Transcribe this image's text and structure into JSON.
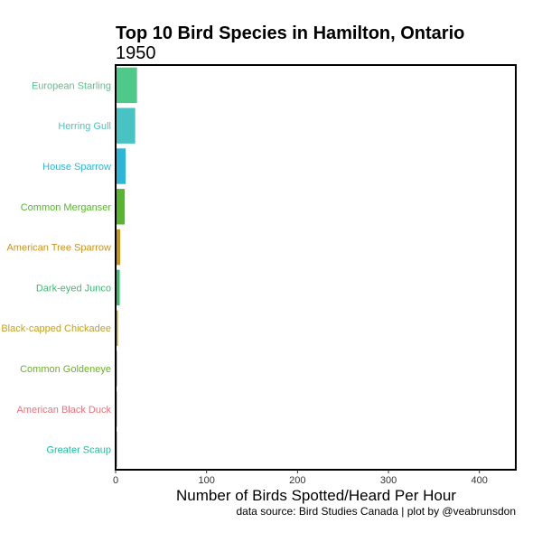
{
  "chart_data": {
    "type": "bar",
    "orientation": "horizontal",
    "title": "Top 10 Bird Species in Hamilton, Ontario",
    "subtitle": "1950",
    "xlabel": "Number of Birds Spotted/Heard Per Hour",
    "caption": "data source: Bird Studies Canada | plot by @veabrunsdon",
    "xlim": [
      0,
      440
    ],
    "xticks": [
      0,
      100,
      200,
      300,
      400
    ],
    "grid": false,
    "categories": [
      "European Starling",
      "Herring Gull",
      "House Sparrow",
      "Common Merganser",
      "American Tree Sparrow",
      "Dark-eyed Junco",
      "Black-capped Chickadee",
      "Common Goldeneye",
      "American Black Duck",
      "Greater Scaup"
    ],
    "values": [
      23.5,
      21.5,
      11,
      10,
      5,
      4.5,
      2.5,
      1.5,
      1,
      0.8
    ],
    "colors": [
      "#4ec98a",
      "#48c3c3",
      "#2eb6d9",
      "#58b530",
      "#c9921e",
      "#36bf73",
      "#c4a020",
      "#6bb028",
      "#f0707a",
      "#1fbc9e"
    ]
  }
}
